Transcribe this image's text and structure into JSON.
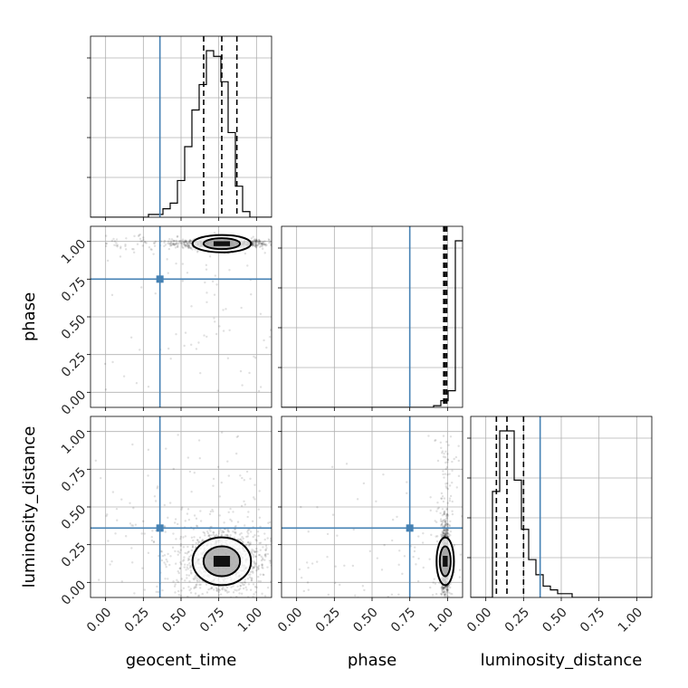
{
  "chart_data": {
    "type": "corner",
    "parameters": [
      "geocent_time",
      "phase",
      "luminosity_distance"
    ],
    "axis_labels": [
      "geocent_time",
      "phase",
      "luminosity_distance"
    ],
    "range": [
      [
        -0.1,
        1.1
      ],
      [
        -0.1,
        1.1
      ],
      [
        -0.1,
        1.1
      ]
    ],
    "ticks": [
      [
        "0.00",
        "0.25",
        "0.50",
        "0.75",
        "1.00"
      ],
      [
        "0.00",
        "0.25",
        "0.50",
        "0.75",
        "1.00"
      ],
      [
        "0.00",
        "0.25",
        "0.50",
        "0.75",
        "1.00"
      ]
    ],
    "truths": [
      0.36,
      0.75,
      0.36
    ],
    "truth_color": "#4682b4",
    "quantiles": [
      [
        0.65,
        0.77,
        0.87
      ],
      [
        0.975,
        0.985,
        0.995
      ],
      [
        0.07,
        0.14,
        0.25
      ]
    ],
    "bins": 25,
    "histograms": [
      [
        0,
        0,
        0,
        0,
        0,
        0,
        0,
        0,
        1,
        1,
        3,
        5,
        13,
        25,
        38,
        47,
        59,
        57,
        48,
        30,
        11,
        2,
        0,
        0,
        0
      ],
      [
        0,
        0,
        0,
        0,
        0,
        0,
        0,
        0,
        0,
        0,
        0,
        0,
        0,
        0,
        0,
        0,
        0,
        0,
        0,
        0,
        0,
        1,
        4,
        10,
        100
      ],
      [
        0,
        0,
        0,
        28,
        44,
        44,
        31,
        18,
        10,
        6,
        3,
        2,
        1,
        1,
        0,
        0,
        0,
        0,
        0,
        0,
        0,
        0,
        0,
        0,
        0
      ]
    ],
    "grid": true
  }
}
